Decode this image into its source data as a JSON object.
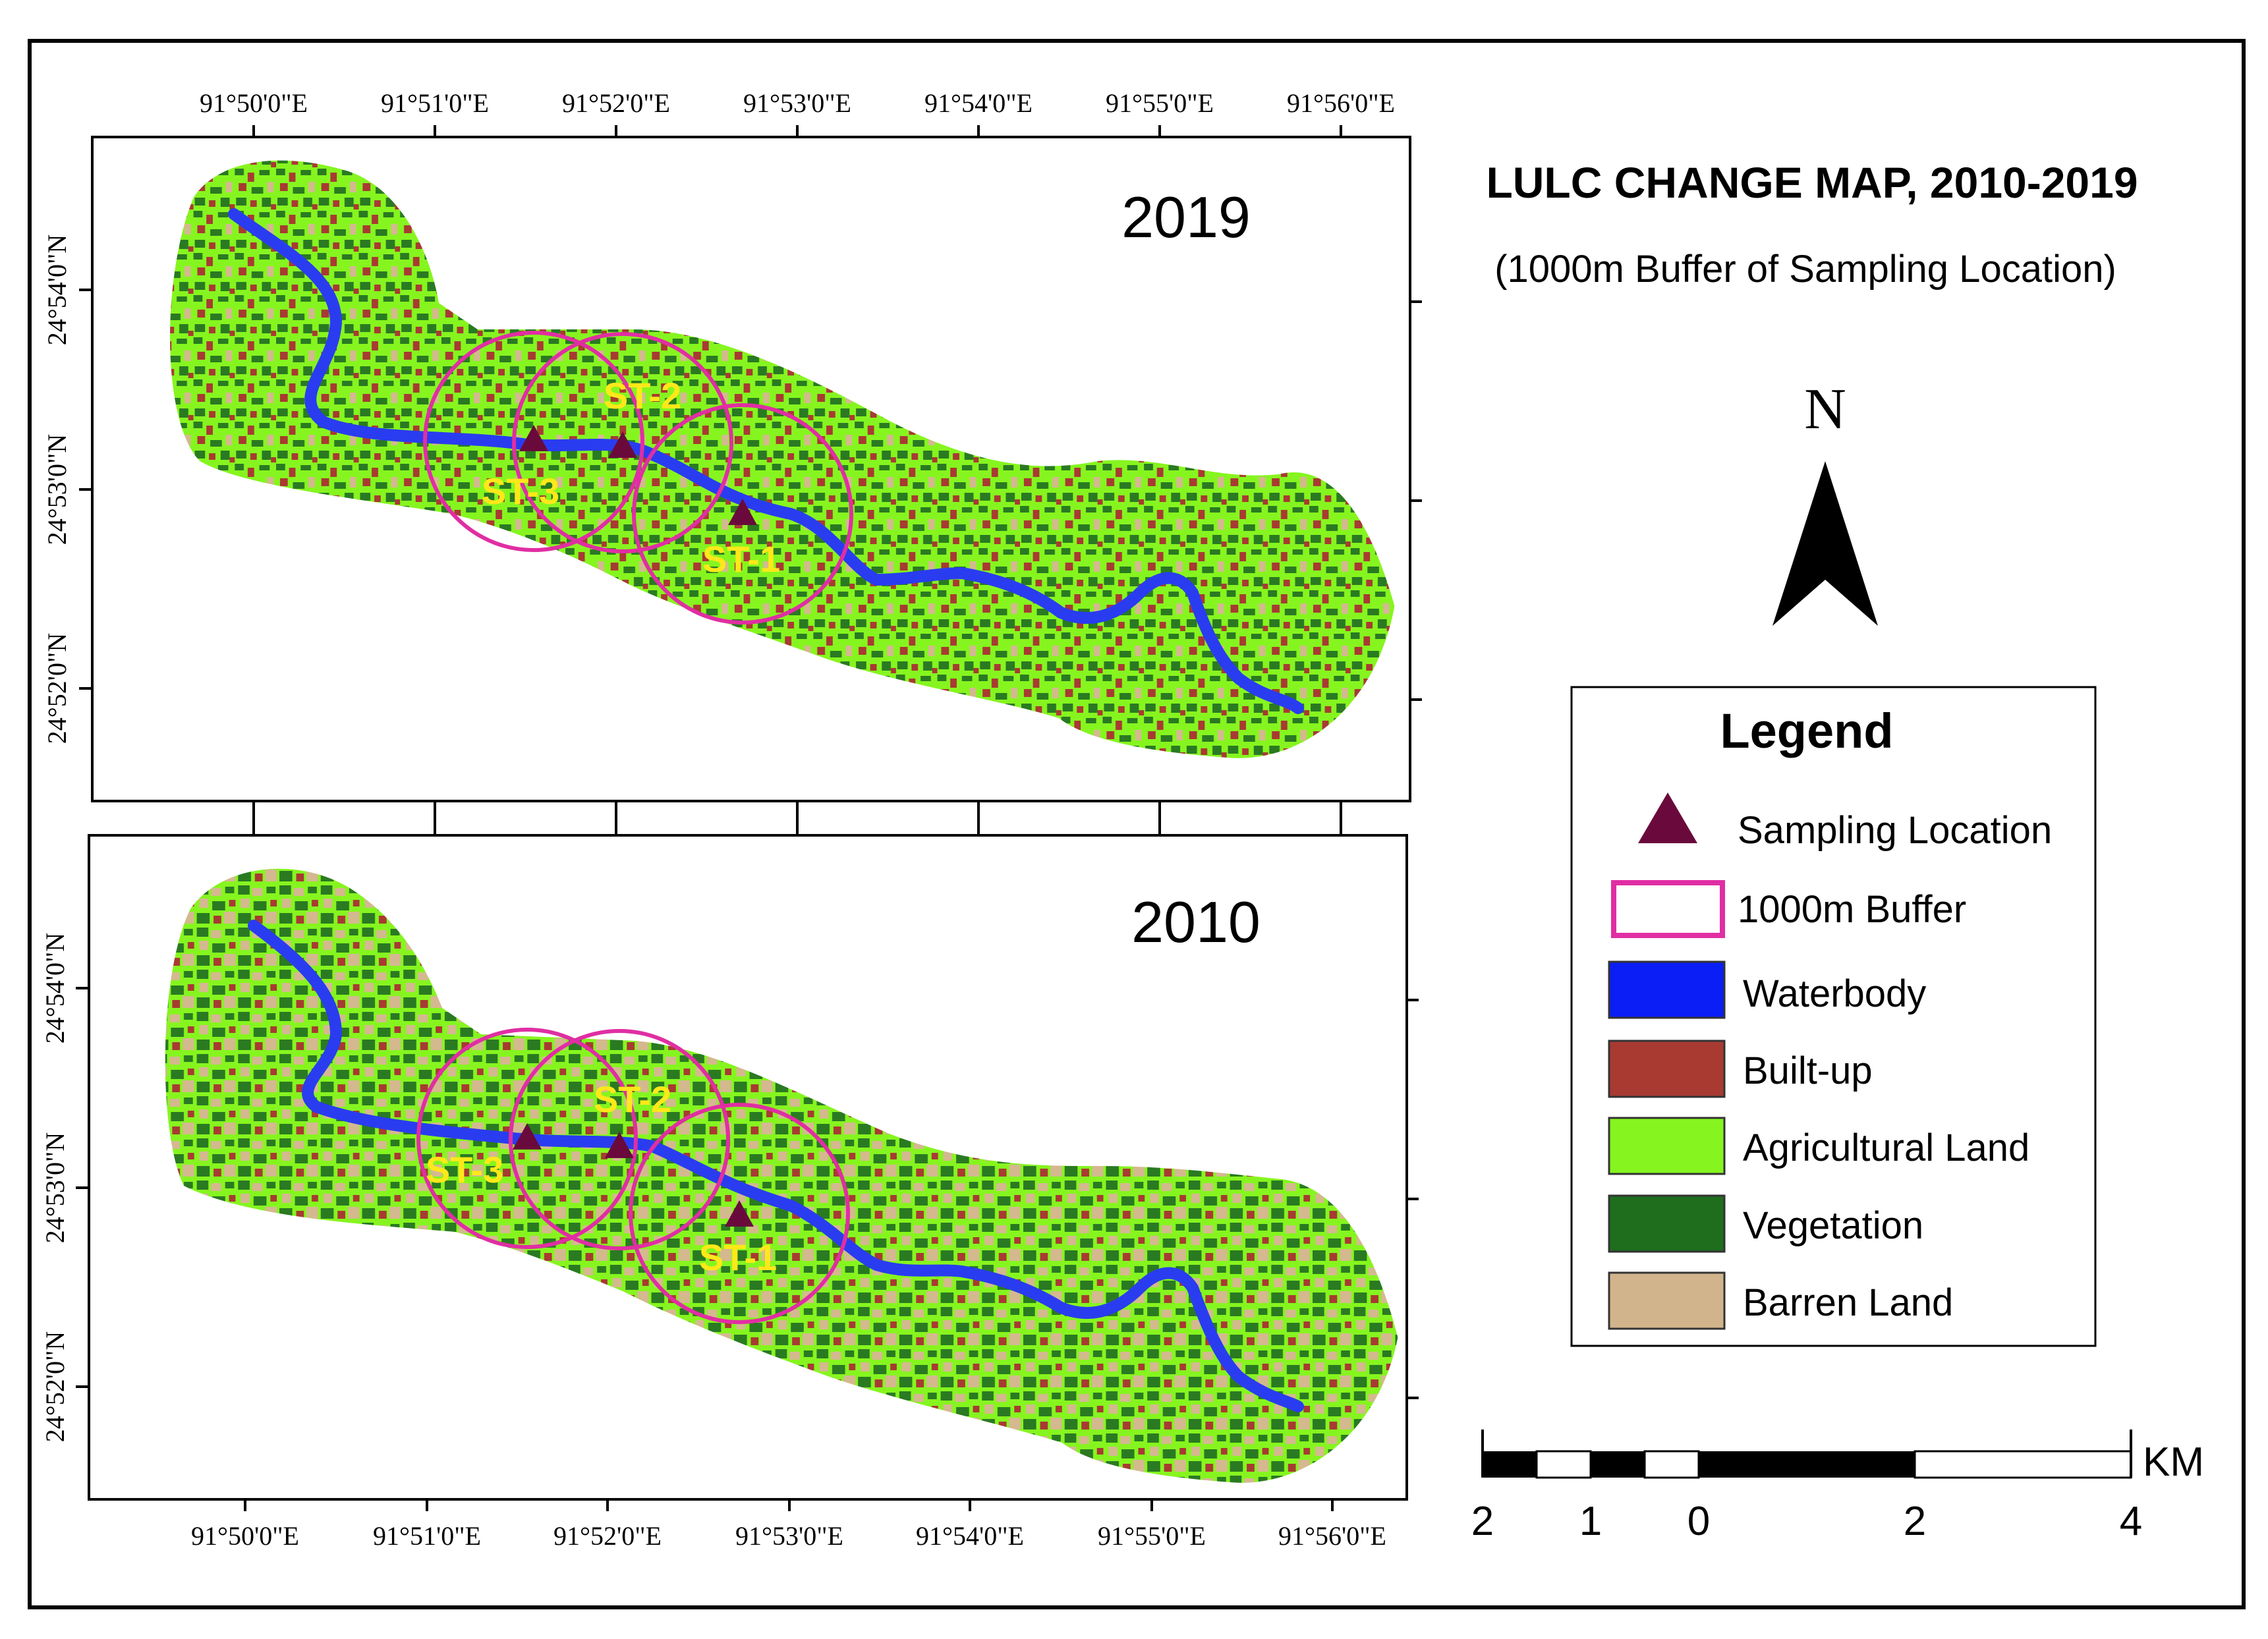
{
  "title": "LULC CHANGE MAP, 2010-2019",
  "subtitle": "(1000m Buffer of Sampling Location)",
  "north_label": "N",
  "maps": [
    {
      "year": "2019"
    },
    {
      "year": "2010"
    }
  ],
  "axis": {
    "top_longitudes": [
      "91°50'0\"E",
      "91°51'0\"E",
      "91°52'0\"E",
      "91°53'0\"E",
      "91°54'0\"E",
      "91°55'0\"E",
      "91°56'0\"E"
    ],
    "bottom_longitudes": [
      "91°50'0\"E",
      "91°51'0\"E",
      "91°52'0\"E",
      "91°53'0\"E",
      "91°54'0\"E",
      "91°55'0\"E",
      "91°56'0\"E"
    ],
    "latitudes_2019": [
      "24°54'0\"N",
      "24°53'0\"N",
      "24°52'0\"N"
    ],
    "latitudes_2010": [
      "24°54'0\"N",
      "24°53'0\"N",
      "24°52'0\"N"
    ]
  },
  "stations": [
    "ST-1",
    "ST-2",
    "ST-3"
  ],
  "legend": {
    "title": "Legend",
    "items": [
      {
        "label": "Sampling Location",
        "symbol": "triangle",
        "color": "#6a0a3c"
      },
      {
        "label": "1000m Buffer",
        "symbol": "outline",
        "color": "#e02ea3"
      },
      {
        "label": "Waterbody",
        "symbol": "fill",
        "color": "#0a1ef5"
      },
      {
        "label": "Built-up",
        "symbol": "fill",
        "color": "#a83a32"
      },
      {
        "label": "Agricultural Land",
        "symbol": "fill",
        "color": "#86f51f"
      },
      {
        "label": "Vegetation",
        "symbol": "fill",
        "color": "#1e6e1e"
      },
      {
        "label": "Barren Land",
        "symbol": "fill",
        "color": "#d2b48c"
      }
    ]
  },
  "scale": {
    "unit": "KM",
    "labels": [
      "2",
      "1",
      "0",
      "2",
      "4"
    ]
  },
  "colors": {
    "water": "#2a3cf0",
    "builtup": "#a83a32",
    "agri": "#86f51f",
    "veg": "#2a7a22",
    "barren": "#d4b98f",
    "buffer": "#e02ea3",
    "station_label": "#ffe81a",
    "triangle": "#6a0a3c"
  }
}
